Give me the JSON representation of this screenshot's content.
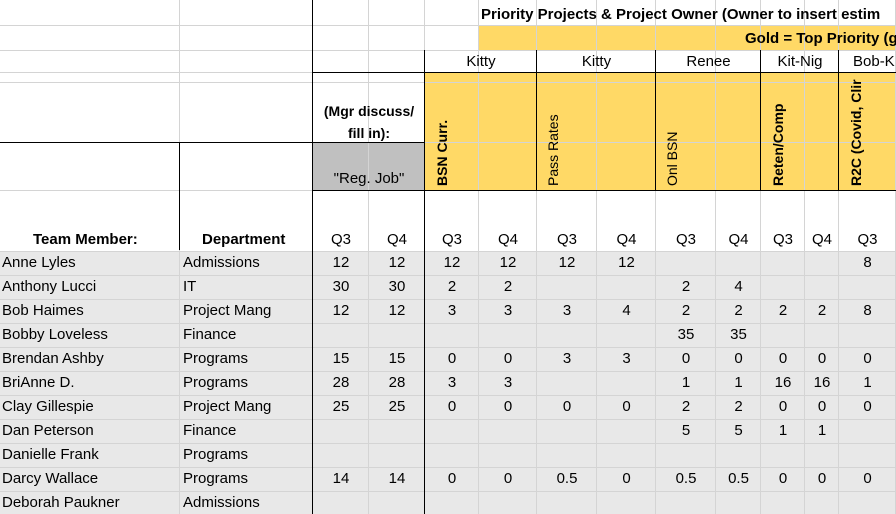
{
  "title": "Priority Projects & Project Owner (Owner to insert estim",
  "gold_note": "Gold = Top Priority (g",
  "owners": [
    "Kitty",
    "Kitty",
    "Renee",
    "Kit-Nig",
    "Bob-K"
  ],
  "mgr_note": "(Mgr discuss/ fill in):",
  "reg_job": "\"Reg. Job\"",
  "projects": [
    "BSN Curr.",
    "Pass Rates",
    "Onl BSN",
    "Reten/Comp",
    "R2C (Covid, Clir"
  ],
  "col_team": "Team Member:",
  "col_dept": "Department",
  "quarters": [
    "Q3",
    "Q4",
    "Q3",
    "Q4",
    "Q3",
    "Q4",
    "Q3",
    "Q4",
    "Q3",
    "Q4",
    "Q3"
  ],
  "rows": [
    {
      "name": "Anne Lyles",
      "dept": "Admissions",
      "v": [
        "12",
        "12",
        "12",
        "12",
        "12",
        "12",
        "",
        "",
        "",
        "",
        "8"
      ]
    },
    {
      "name": "Anthony Lucci",
      "dept": "IT",
      "v": [
        "30",
        "30",
        "2",
        "2",
        "",
        "",
        "2",
        "4",
        "",
        "",
        ""
      ]
    },
    {
      "name": "Bob Haimes",
      "dept": "Project Mang",
      "v": [
        "12",
        "12",
        "3",
        "3",
        "3",
        "4",
        "2",
        "2",
        "2",
        "2",
        "8"
      ]
    },
    {
      "name": "Bobby Loveless",
      "dept": "Finance",
      "v": [
        "",
        "",
        "",
        "",
        "",
        "",
        "35",
        "35",
        "",
        "",
        ""
      ]
    },
    {
      "name": "Brendan Ashby",
      "dept": "Programs",
      "v": [
        "15",
        "15",
        "0",
        "0",
        "3",
        "3",
        "0",
        "0",
        "0",
        "0",
        "0"
      ]
    },
    {
      "name": "BriAnne D.",
      "dept": "Programs",
      "v": [
        "28",
        "28",
        "3",
        "3",
        "",
        "",
        "1",
        "1",
        "16",
        "16",
        "1"
      ]
    },
    {
      "name": "Clay Gillespie",
      "dept": "Project Mang",
      "v": [
        "25",
        "25",
        "0",
        "0",
        "0",
        "0",
        "2",
        "2",
        "0",
        "0",
        "0"
      ]
    },
    {
      "name": "Dan Peterson",
      "dept": "Finance",
      "v": [
        "",
        "",
        "",
        "",
        "",
        "",
        "5",
        "5",
        "1",
        "1",
        ""
      ]
    },
    {
      "name": "Danielle Frank",
      "dept": "Programs",
      "v": [
        "",
        "",
        "",
        "",
        "",
        "",
        "",
        "",
        "",
        "",
        ""
      ]
    },
    {
      "name": "Darcy Wallace",
      "dept": "Programs",
      "v": [
        "14",
        "14",
        "0",
        "0",
        "0.5",
        "0",
        "0.5",
        "0.5",
        "0",
        "0",
        "0"
      ]
    },
    {
      "name": "Deborah Paukner",
      "dept": "Admissions",
      "v": [
        "",
        "",
        "",
        "",
        "",
        "",
        "",
        "",
        "",
        "",
        ""
      ]
    }
  ],
  "colors": {
    "gold": "#ffd966",
    "gray_row": "#e8e8e8",
    "gray_hdr": "#c0c0c0",
    "grid": "#d4d4d4"
  }
}
